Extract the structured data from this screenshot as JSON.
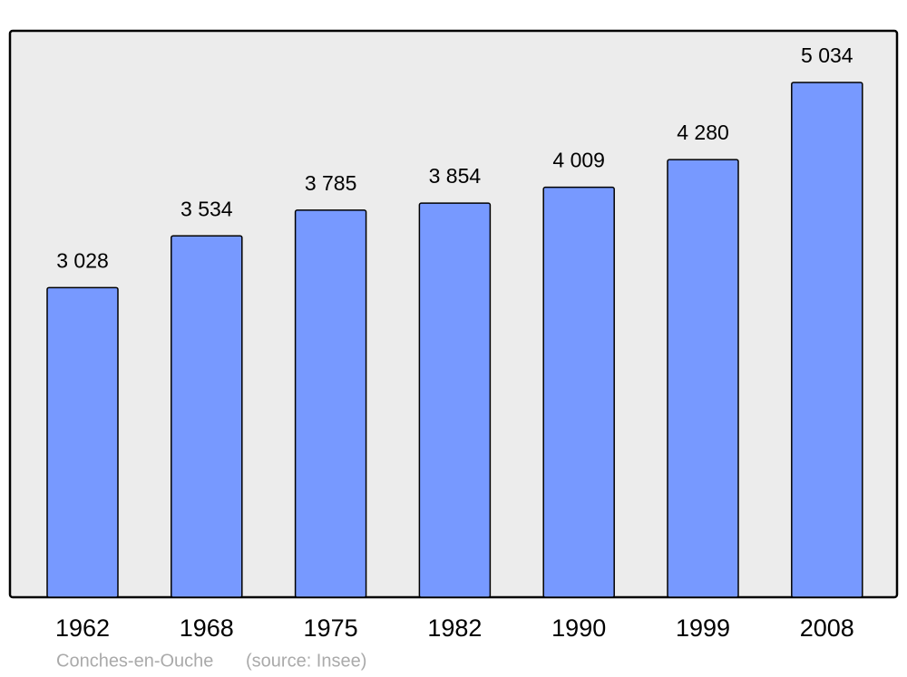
{
  "chart_data": {
    "type": "bar",
    "categories": [
      "1962",
      "1968",
      "1975",
      "1982",
      "1990",
      "1999",
      "2008"
    ],
    "values": [
      3028,
      3534,
      3785,
      3854,
      4009,
      4280,
      5034
    ],
    "value_labels": [
      "3 028",
      "3 534",
      "3 785",
      "3 854",
      "4 009",
      "4 280",
      "5 034"
    ],
    "color": "#7799ff",
    "place": "Conches-en-Ouche",
    "source": "(source: Insee)"
  }
}
